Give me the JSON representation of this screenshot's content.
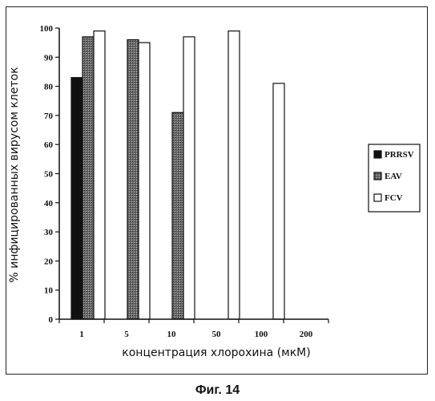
{
  "chart_data": {
    "type": "bar",
    "categories": [
      "1",
      "5",
      "10",
      "50",
      "100",
      "200"
    ],
    "series": [
      {
        "name": "PRRSV",
        "values": [
          83,
          null,
          null,
          null,
          null,
          null
        ]
      },
      {
        "name": "EAV",
        "values": [
          97,
          96,
          71,
          null,
          null,
          null
        ]
      },
      {
        "name": "FCV",
        "values": [
          99,
          95,
          97,
          99,
          81,
          null
        ]
      }
    ],
    "title": "",
    "xlabel": "концентрация хлорохина (мкМ)",
    "ylabel": "% инфицированных вирусом клеток",
    "ylim": [
      0,
      100
    ],
    "yticks": [
      0,
      10,
      20,
      30,
      40,
      50,
      60,
      70,
      80,
      90,
      100
    ],
    "grid": false,
    "legend": "right",
    "colors": {
      "PRRSV": "#111111",
      "EAV": "#555555",
      "FCV": "#ffffff"
    }
  },
  "caption": "Фиг. 14"
}
